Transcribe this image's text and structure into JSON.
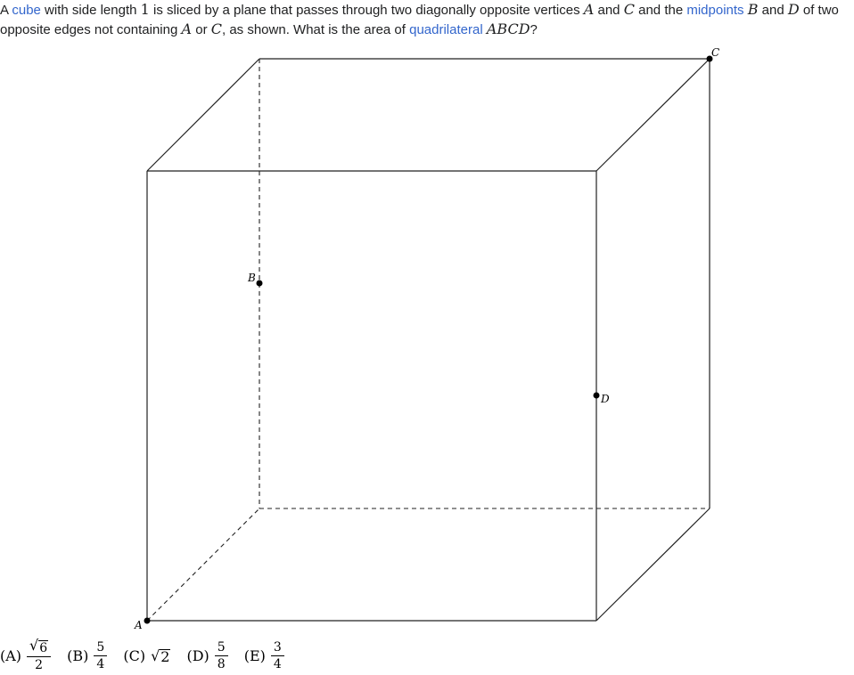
{
  "problem": {
    "t1": "A ",
    "link_cube": "cube",
    "t2": " with side length ",
    "m_one": "1",
    "t3": " is sliced by a plane that passes through two diagonally opposite vertices ",
    "m_A": "A",
    "t4": " and ",
    "m_C": "C",
    "t5": " and the ",
    "link_midpoints": "midpoints",
    "t6": " ",
    "m_B": "B",
    "t7": " and ",
    "m_D": "D",
    "t8": " of two opposite edges not containing ",
    "m_A2": "A",
    "t9": " or ",
    "m_C2": "C",
    "t10": ", as shown. What is the area of ",
    "link_quadrilateral": "quadrilateral",
    "t11": " ",
    "m_ABCD": "ABCD",
    "t12": "?"
  },
  "figure": {
    "labels": {
      "A": "A",
      "B": "B",
      "C": "C",
      "D": "D"
    }
  },
  "choices": [
    {
      "letter": "(A)",
      "num_radicand": "6",
      "den": "2"
    },
    {
      "letter": "(B)",
      "num": "5",
      "den": "4"
    },
    {
      "letter": "(C)",
      "radicand": "2"
    },
    {
      "letter": "(D)",
      "num": "5",
      "den": "8"
    },
    {
      "letter": "(E)",
      "num": "3",
      "den": "4"
    }
  ],
  "colors": {
    "link": "#3366cc",
    "text": "#202122"
  }
}
